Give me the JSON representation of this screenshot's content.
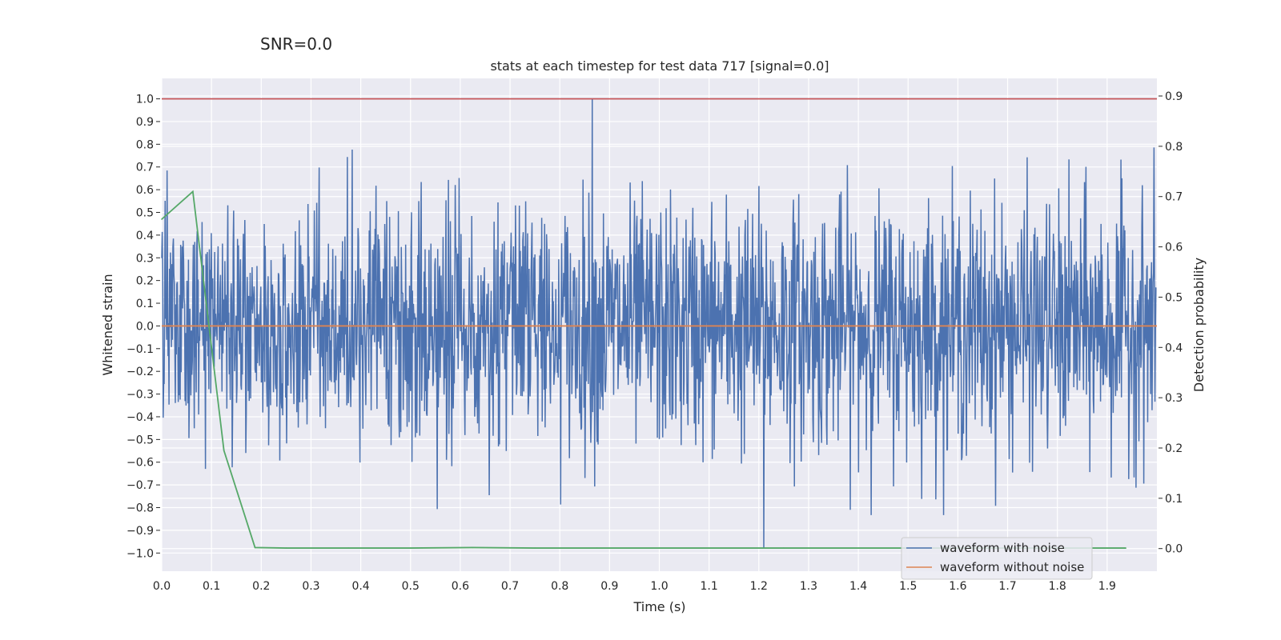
{
  "suptitle": "SNR=0.0",
  "chart_data": {
    "type": "line",
    "title": "stats at each timestep for test data 717 [signal=0.0]",
    "xlabel": "Time (s)",
    "ylabel": "Whitened strain",
    "y2label": "Detection probability",
    "xlim": [
      0.0,
      2.0
    ],
    "ylim": [
      -1.08,
      1.09
    ],
    "y2lim": [
      -0.045,
      0.935
    ],
    "xticks": [
      "0.0",
      "0.1",
      "0.2",
      "0.3",
      "0.4",
      "0.5",
      "0.6",
      "0.7",
      "0.8",
      "0.9",
      "1.0",
      "1.1",
      "1.2",
      "1.3",
      "1.4",
      "1.5",
      "1.6",
      "1.7",
      "1.8",
      "1.9"
    ],
    "yticks": [
      "1.0",
      "0.9",
      "0.8",
      "0.7",
      "0.6",
      "0.5",
      "0.4",
      "0.3",
      "0.2",
      "0.1",
      "0.0",
      "−0.1",
      "−0.2",
      "−0.3",
      "−0.4",
      "−0.5",
      "−0.6",
      "−0.7",
      "−0.8",
      "−0.9",
      "−1.0"
    ],
    "y2ticks": [
      "0.9",
      "0.8",
      "0.7",
      "0.6",
      "0.5",
      "0.4",
      "0.3",
      "0.2",
      "0.1",
      "0.0"
    ],
    "grid": true,
    "legend_position": "bottom-right",
    "series": [
      {
        "name": "waveform with noise",
        "color": "#4c72b0",
        "kind": "noise",
        "t_start": 0.0,
        "t_end": 2.0,
        "n_samples": 2048,
        "std": 0.27,
        "max": 1.0,
        "min": -0.98
      },
      {
        "name": "waveform without noise",
        "color": "#dd8452",
        "x": [
          0.0,
          2.0
        ],
        "y": [
          0.0,
          0.0
        ]
      },
      {
        "name": "detection probability",
        "axis": "right",
        "color": "#55a868",
        "show_in_legend": false,
        "x": [
          0.0,
          0.0625,
          0.125,
          0.1875,
          0.25,
          0.375,
          0.5,
          0.625,
          0.75,
          0.875,
          1.0,
          1.25,
          1.5,
          1.75,
          1.9375
        ],
        "y": [
          0.655,
          0.71,
          0.195,
          0.002,
          0.001,
          0.001,
          0.001,
          0.002,
          0.001,
          0.001,
          0.001,
          0.001,
          0.001,
          0.001,
          0.001
        ]
      }
    ],
    "hlines": [
      {
        "y": 1.0,
        "color": "#c44e52"
      }
    ]
  }
}
